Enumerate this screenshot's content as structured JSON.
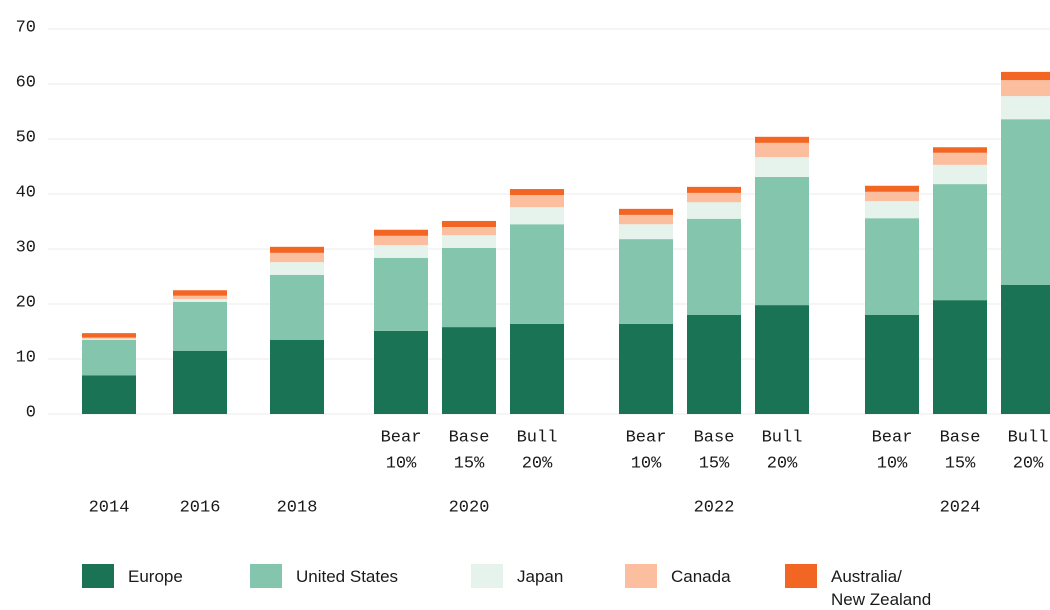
{
  "chart_data": {
    "type": "stacked_bar",
    "ylim": [
      0,
      70
    ],
    "yticks": [
      0,
      10,
      20,
      30,
      40,
      50,
      60,
      70
    ],
    "grid": true,
    "scenarios": [
      null,
      null,
      null,
      "Bear",
      "Base",
      "Bull",
      "Bear",
      "Base",
      "Bull",
      "Bear",
      "Base",
      "Bull"
    ],
    "scenario_shares": [
      null,
      null,
      null,
      "10%",
      "15%",
      "20%",
      "10%",
      "15%",
      "20%",
      "10%",
      "15%",
      "20%"
    ],
    "groups": [
      {
        "label": "2014",
        "count": 1
      },
      {
        "label": "2016",
        "count": 1
      },
      {
        "label": "2018",
        "count": 1
      },
      {
        "label": "2020",
        "count": 3
      },
      {
        "label": "2022",
        "count": 3
      },
      {
        "label": "2024",
        "count": 3
      }
    ],
    "series": [
      {
        "name": "Europe",
        "color": "#1a7355",
        "values": [
          7,
          11.5,
          13.5,
          15.1,
          15.8,
          16.4,
          16.4,
          18,
          19.8,
          18,
          20.7,
          23.5
        ]
      },
      {
        "name": "United States",
        "color": "#84c5ad",
        "values": [
          6.5,
          8.9,
          11.8,
          13.3,
          14.4,
          18.1,
          15.4,
          17.5,
          23.3,
          17.6,
          21.1,
          30.1
        ]
      },
      {
        "name": "Japan",
        "color": "#e6f3ec",
        "values": [
          0.2,
          0.5,
          2.3,
          2.3,
          2.3,
          3.1,
          2.7,
          3,
          3.6,
          3.1,
          3.5,
          4.2
        ]
      },
      {
        "name": "Canada",
        "color": "#fbbfa0",
        "values": [
          0.2,
          0.6,
          1.7,
          1.7,
          1.5,
          2.2,
          1.7,
          1.7,
          2.6,
          1.7,
          2.2,
          2.9
        ]
      },
      {
        "name": "Australia/\nNew Zealand",
        "color": "#f26522",
        "values": [
          0.8,
          1,
          1.1,
          1.1,
          1.1,
          1.1,
          1.1,
          1.1,
          1.1,
          1.1,
          1,
          1.5
        ]
      }
    ],
    "legend": "bottom"
  }
}
